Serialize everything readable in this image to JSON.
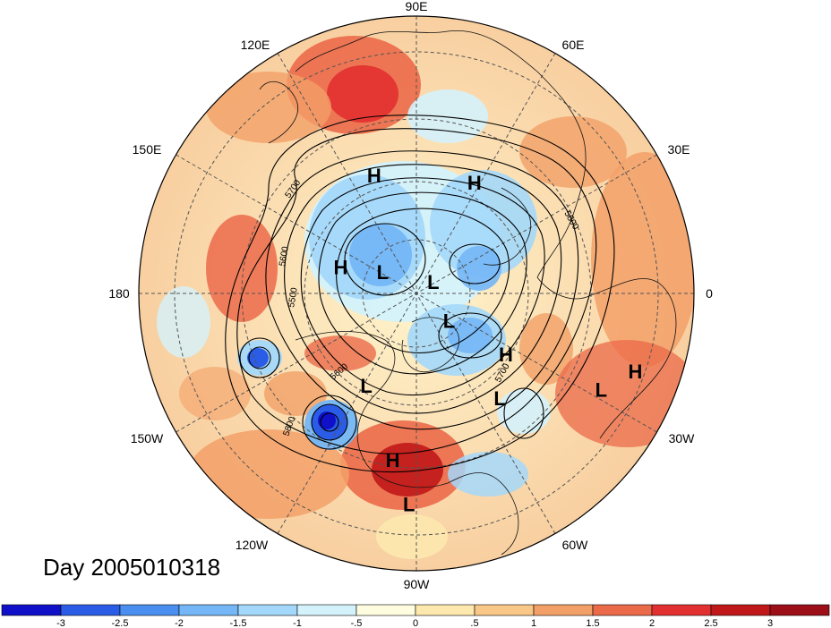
{
  "title": "Day 2005010318",
  "lon_labels": [
    "90E",
    "60E",
    "30E",
    "0",
    "30W",
    "60W",
    "90W",
    "120W",
    "150W",
    "180",
    "150E",
    "120E"
  ],
  "centers": [
    {
      "type": "H",
      "lon": 110,
      "lat": 42
    },
    {
      "type": "H",
      "lon": 62,
      "lat": 42
    },
    {
      "type": "H",
      "lon": 162,
      "lat": 58
    },
    {
      "type": "H",
      "lon": -35,
      "lat": 47
    },
    {
      "type": "H",
      "lon": -98,
      "lat": 27
    },
    {
      "type": "H",
      "lon": -20,
      "lat": 10
    },
    {
      "type": "L",
      "lon": 150,
      "lat": 74
    },
    {
      "type": "L",
      "lon": 30,
      "lat": 82
    },
    {
      "type": "L",
      "lon": -42,
      "lat": 72
    },
    {
      "type": "L",
      "lon": -118,
      "lat": 48
    },
    {
      "type": "L",
      "lon": -52,
      "lat": 38
    },
    {
      "type": "L",
      "lon": -28,
      "lat": 16
    },
    {
      "type": "L",
      "lon": -92,
      "lat": 15
    }
  ],
  "contour_labels": [
    "5700",
    "5600",
    "5500",
    "5800",
    "5600",
    "5700",
    "5800"
  ],
  "colorbar": {
    "ticks": [
      "-3",
      "-2.5",
      "-2",
      "-1.5",
      "-1",
      "-.5",
      "0",
      ".5",
      "1",
      "1.5",
      "2",
      "2.5",
      "3"
    ],
    "colors": [
      "#1010c8",
      "#2a5ce6",
      "#4a8ef0",
      "#74b6f6",
      "#a4d8fa",
      "#d4f2fc",
      "#fffde0",
      "#fde8ae",
      "#f9c888",
      "#f3a068",
      "#eb6a4a",
      "#e23030",
      "#c01818",
      "#9c0e18"
    ]
  },
  "colors": {
    "warm": "#f3a068",
    "cold": "#74b6f6",
    "neutral": "#fde8ae"
  }
}
